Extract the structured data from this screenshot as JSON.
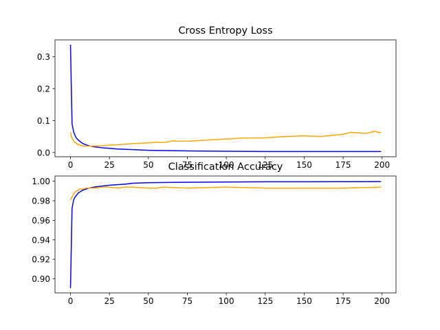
{
  "chart_data": [
    {
      "type": "line",
      "title": "Cross Entropy Loss",
      "xlabel": "",
      "ylabel": "",
      "xlim": [
        -9.95,
        208.95
      ],
      "ylim": [
        -0.0133,
        0.3526
      ],
      "xticks": [
        0,
        25,
        50,
        75,
        100,
        125,
        150,
        175,
        200
      ],
      "xtick_labels": [
        "0",
        "25",
        "50",
        "75",
        "100",
        "125",
        "150",
        "175",
        "200"
      ],
      "yticks": [
        0.0,
        0.1,
        0.2,
        0.3
      ],
      "ytick_labels": [
        "0.0",
        "0.1",
        "0.2",
        "0.3"
      ],
      "grid": false,
      "legend": "none",
      "series": [
        {
          "color": "#0000ff",
          "x": [
            0,
            1,
            2,
            3,
            4,
            5,
            6,
            7,
            8,
            10,
            12,
            15,
            20,
            25,
            30,
            40,
            50,
            60,
            75,
            100,
            125,
            150,
            175,
            199
          ],
          "values": [
            0.336,
            0.09,
            0.065,
            0.052,
            0.044,
            0.039,
            0.035,
            0.031,
            0.028,
            0.024,
            0.021,
            0.018,
            0.015,
            0.013,
            0.011,
            0.009,
            0.007,
            0.006,
            0.005,
            0.004,
            0.003,
            0.003,
            0.003,
            0.003
          ]
        },
        {
          "color": "#ffa500",
          "x": [
            0,
            1,
            2,
            3,
            4,
            5,
            6,
            7,
            8,
            10,
            12,
            15,
            20,
            25,
            30,
            40,
            50,
            55,
            60,
            65,
            75,
            85,
            100,
            110,
            125,
            135,
            150,
            160,
            175,
            180,
            190,
            195,
            199
          ],
          "values": [
            0.062,
            0.045,
            0.036,
            0.031,
            0.028,
            0.025,
            0.023,
            0.022,
            0.021,
            0.02,
            0.02,
            0.02,
            0.021,
            0.023,
            0.024,
            0.028,
            0.03,
            0.032,
            0.031,
            0.036,
            0.035,
            0.038,
            0.042,
            0.045,
            0.046,
            0.049,
            0.052,
            0.05,
            0.057,
            0.063,
            0.06,
            0.066,
            0.062
          ]
        }
      ]
    },
    {
      "type": "line",
      "title": "Classification Accuracy",
      "xlabel": "",
      "ylabel": "",
      "xlim": [
        -9.95,
        208.95
      ],
      "ylim": [
        0.8856,
        1.0054
      ],
      "xticks": [
        0,
        25,
        50,
        75,
        100,
        125,
        150,
        175,
        200
      ],
      "xtick_labels": [
        "0",
        "25",
        "50",
        "75",
        "100",
        "125",
        "150",
        "175",
        "200"
      ],
      "yticks": [
        0.9,
        0.92,
        0.94,
        0.96,
        0.98,
        1.0
      ],
      "ytick_labels": [
        "0.90",
        "0.92",
        "0.94",
        "0.96",
        "0.98",
        "1.00"
      ],
      "grid": false,
      "legend": "none",
      "series": [
        {
          "color": "#0000ff",
          "x": [
            0,
            1,
            2,
            3,
            4,
            5,
            6,
            8,
            10,
            12,
            15,
            20,
            25,
            30,
            35,
            40,
            50,
            75,
            100,
            125,
            150,
            175,
            199
          ],
          "values": [
            0.891,
            0.972,
            0.981,
            0.984,
            0.986,
            0.988,
            0.989,
            0.991,
            0.992,
            0.993,
            0.994,
            0.995,
            0.996,
            0.9965,
            0.997,
            0.998,
            0.9985,
            0.999,
            0.9992,
            0.9995,
            0.9995,
            0.9996,
            0.9997
          ]
        },
        {
          "color": "#ffa500",
          "x": [
            0,
            1,
            2,
            3,
            4,
            5,
            6,
            8,
            10,
            12,
            15,
            20,
            25,
            30,
            35,
            40,
            50,
            55,
            60,
            75,
            100,
            125,
            150,
            175,
            199
          ],
          "values": [
            0.981,
            0.984,
            0.987,
            0.989,
            0.99,
            0.991,
            0.992,
            0.992,
            0.993,
            0.993,
            0.993,
            0.994,
            0.994,
            0.993,
            0.994,
            0.994,
            0.993,
            0.993,
            0.994,
            0.993,
            0.994,
            0.993,
            0.993,
            0.993,
            0.994
          ]
        }
      ]
    }
  ]
}
